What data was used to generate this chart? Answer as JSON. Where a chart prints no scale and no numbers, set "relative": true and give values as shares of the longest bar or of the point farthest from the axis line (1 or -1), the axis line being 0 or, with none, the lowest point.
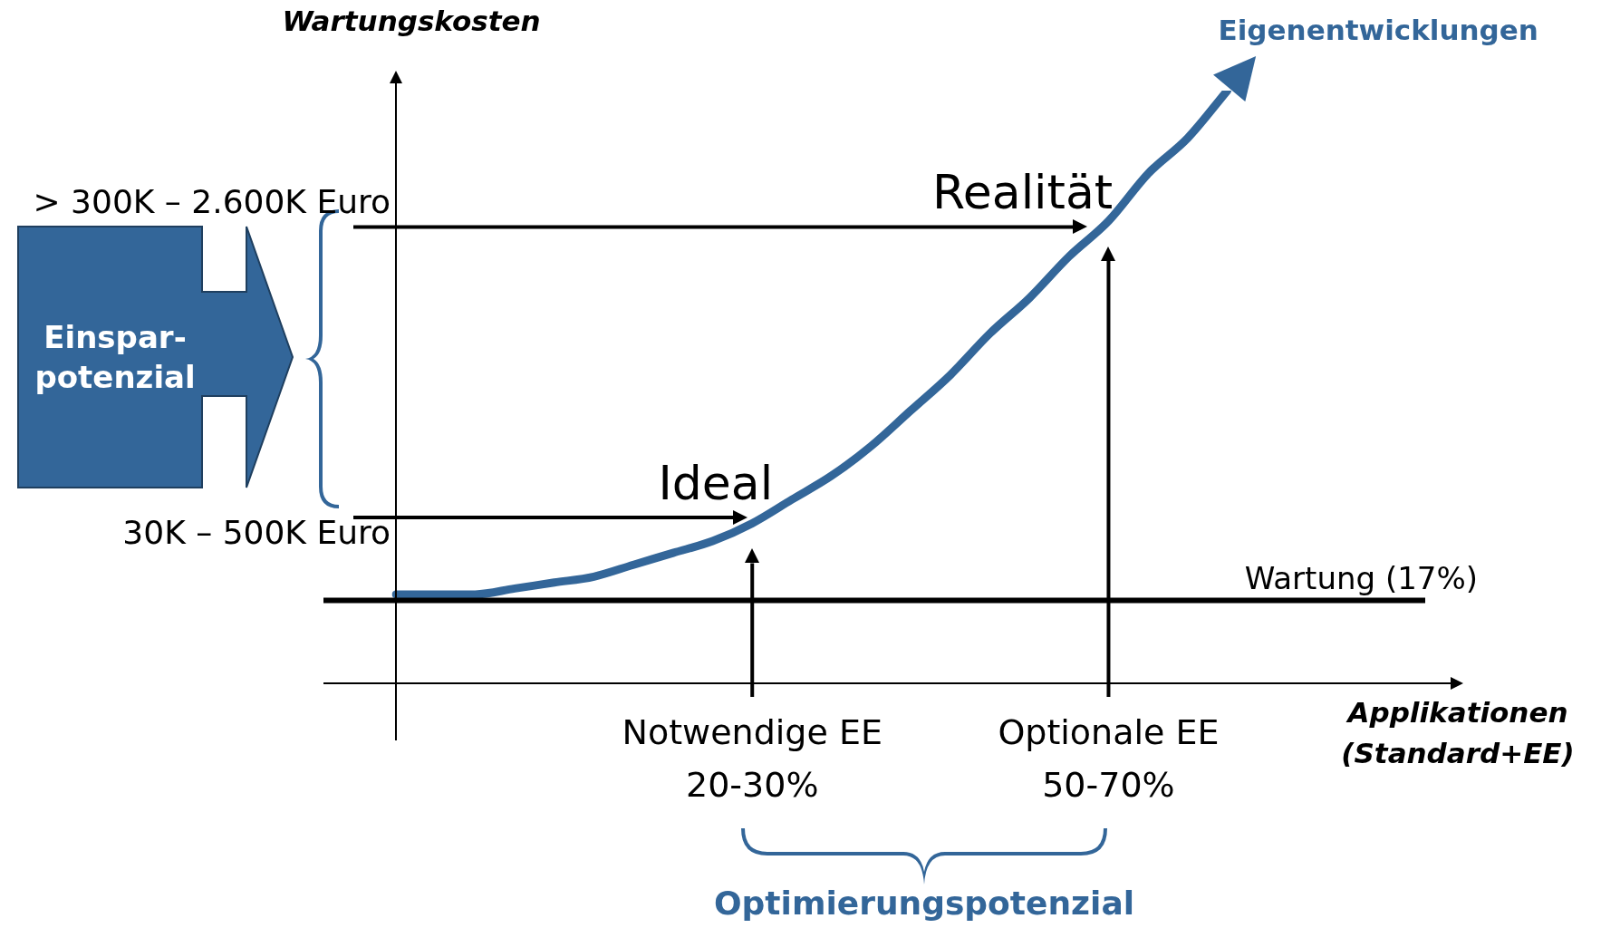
{
  "chart_data": {
    "type": "line",
    "relative": true,
    "ylabel": "Wartungskosten",
    "xlabel": "Applikationen\n(Standard+EE)",
    "categories": [
      null,
      null,
      null,
      null,
      null,
      null,
      null,
      null,
      null,
      "Notwendige EE\n20-30%",
      null,
      null,
      null,
      null,
      null,
      null,
      null,
      null,
      "Optionale EE\n50-70%",
      null,
      null,
      null,
      null,
      null,
      null,
      null,
      null
    ],
    "series": [
      {
        "name": "Eigenentwicklungen",
        "color": "#336699",
        "values": [
          0.15,
          0.15,
          0.15,
          0.16,
          0.17,
          0.18,
          0.2,
          0.22,
          0.24,
          0.27,
          0.31,
          0.35,
          0.4,
          0.46,
          0.52,
          0.59,
          0.65,
          0.72,
          0.78,
          0.86,
          0.92,
          1,
          null,
          null,
          null,
          null,
          null
        ]
      }
    ],
    "ref_lines": [
      {
        "axis": "y",
        "value": 0.77,
        "label": "Realität"
      },
      {
        "axis": "y",
        "value": 0.28,
        "label": "Ideal"
      },
      {
        "axis": "y",
        "value": 0.14,
        "label": "Wartung (17%)"
      },
      {
        "axis": "x",
        "value": "Notwendige EE\n20-30%"
      },
      {
        "axis": "x",
        "value": "Optionale EE\n50-70%"
      }
    ],
    "annotations": [
      "> 300K – 2.600K Euro",
      "30K – 500K Euro",
      "Einspar-\npotenzial",
      "Optimierungspotenzial"
    ],
    "grid": false,
    "legend": false,
    "marker": "none"
  }
}
